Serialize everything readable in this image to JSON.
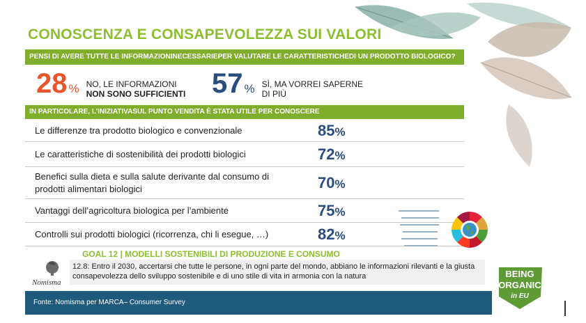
{
  "header": {
    "title": "CONOSCENZA E CONSAPEVOLEZZA SUI VALORI",
    "question": "PENSI DI AVERE TUTTE LE INFORMAZIONINECESSARIEPER VALUTARE LE CARATTERISTICHEDI UN PRODOTTO BIOLOGICO?"
  },
  "stats": [
    {
      "value": "28",
      "unit": "%",
      "line1": "NO, LE INFORMAZIONI",
      "line2": "NON SONO SUFFICIENTI",
      "color": "#e8552a"
    },
    {
      "value": "57",
      "unit": "%",
      "line1": "SÌ, MA VORREI SAPERNE",
      "line2": "DI PIÙ",
      "color": "#2a4d7f"
    }
  ],
  "section": {
    "subtitle": "IN PARTICOLARE, L’INIZIATIVASUL PUNTO VENDITA È STATA UTILE PER CONOSCERE",
    "items": [
      {
        "label": "Le differenze tra prodotto biologico e convenzionale",
        "value": "85",
        "unit": "%"
      },
      {
        "label": "Le caratteristiche di sostenibilità dei prodotti biologici",
        "value": "72",
        "unit": "%"
      },
      {
        "label": "Benefici sulla dieta e sulla salute derivante dal consumo di prodotti alimentari biologici",
        "value": "70",
        "unit": "%"
      },
      {
        "label": "Vantaggi dell’agricoltura biologica per l’ambiente",
        "value": "75",
        "unit": "%"
      },
      {
        "label": "Controlli sui prodotti biologici (ricorrenza, chi li esegue, …)",
        "value": "82",
        "unit": "%"
      }
    ]
  },
  "goal": {
    "title": "GOAL 12 | MODELLI SOSTENIBILI DI PRODUZIONE E CONSUMO",
    "text": "12.8: Entro il 2030, accertarsi che tutte le persone, in ogni parte del mondo, abbiano le informazioni rilevanti e la giusta consapevolezza dello sviluppo sostenibile e di uno stile di vita in armonia con la natura"
  },
  "brand": {
    "nomisma": "Nomisma",
    "logo_line1": "BEING",
    "logo_line2": "ORGANIC",
    "logo_line3": "in EU"
  },
  "footer": {
    "source": "Fonte: Nomisma per MARCA– Consumer Survey"
  },
  "colors": {
    "green": "#7fae2c",
    "title_green": "#8cbf2f",
    "orange": "#e8552a",
    "navy": "#2a4d7f",
    "footer_blue": "#1e5a7a"
  },
  "icons": {
    "decoration": "leaves-illustration",
    "sdg": "sdg-wheel-icon",
    "nomisma": "nomisma-logo",
    "being_organic": "being-organic-logo"
  }
}
